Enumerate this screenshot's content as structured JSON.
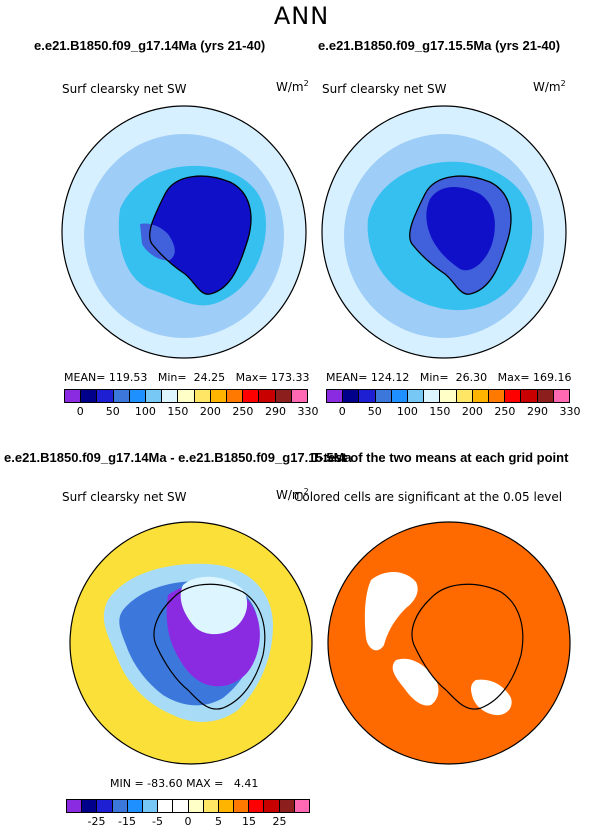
{
  "page": {
    "title": "ANN"
  },
  "panels": {
    "top_left": {
      "case_title": "e.e21.B1850.f09_g17.14Ma (yrs 21-40)",
      "variable": "Surf clearsky net SW",
      "units_base": "W/m",
      "units_exp": "2",
      "stats": "MEAN= 119.53   Min=  24.25   Max= 173.33"
    },
    "top_right": {
      "case_title": "e.e21.B1850.f09_g17.15.5Ma (yrs 21-40)",
      "variable": "Surf clearsky net SW",
      "units_base": "W/m",
      "units_exp": "2",
      "stats": "MEAN= 124.12   Min=  26.30   Max= 169.16"
    },
    "bottom_left": {
      "case_title": "e.e21.B1850.f09_g17.14Ma - e.e21.B1850.f09_g17.15.5Ma",
      "variable": "Surf clearsky net SW",
      "units_base": "W/m",
      "units_exp": "2",
      "stats": "MIN = -83.60 MAX =   4.41"
    },
    "bottom_right": {
      "case_title": "T-test of the two means at each grid point",
      "subtitle": "Colored cells are significant at the 0.05 level"
    }
  },
  "colorbars": {
    "absolute": {
      "colors": [
        "#8a2be2",
        "#00008b",
        "#1e1ed2",
        "#3c78dc",
        "#1e90ff",
        "#78c8f5",
        "#dcf5ff",
        "#ffffc8",
        "#ffe664",
        "#ffb400",
        "#ff7800",
        "#ff0000",
        "#c80000",
        "#8c1e1e",
        "#ff69b4"
      ],
      "ticks": [
        "0",
        "50",
        "100",
        "150",
        "200",
        "250",
        "290",
        "330"
      ]
    },
    "difference": {
      "colors": [
        "#8a2be2",
        "#00008b",
        "#1e1ed2",
        "#3c78dc",
        "#1e90ff",
        "#78c8f5",
        "#ffffff",
        "#ffffff",
        "#ffffc8",
        "#ffe664",
        "#ffb400",
        "#ff7800",
        "#ff0000",
        "#c80000",
        "#8c1e1e",
        "#ff69b4"
      ],
      "ticks": [
        "-25",
        "-15",
        "-5",
        "0",
        "5",
        "15",
        "25"
      ]
    }
  },
  "map_colors": {
    "outer_ring": "#d6f0ff",
    "ocean_band": "#9ecdf7",
    "sea_ice_zone": "#35c0ef",
    "antarctica_high": "#1010c8",
    "antarctica_mid": "#4060dc",
    "diff_background": "#fbe03a",
    "ttest_background": "#ff6a00"
  }
}
